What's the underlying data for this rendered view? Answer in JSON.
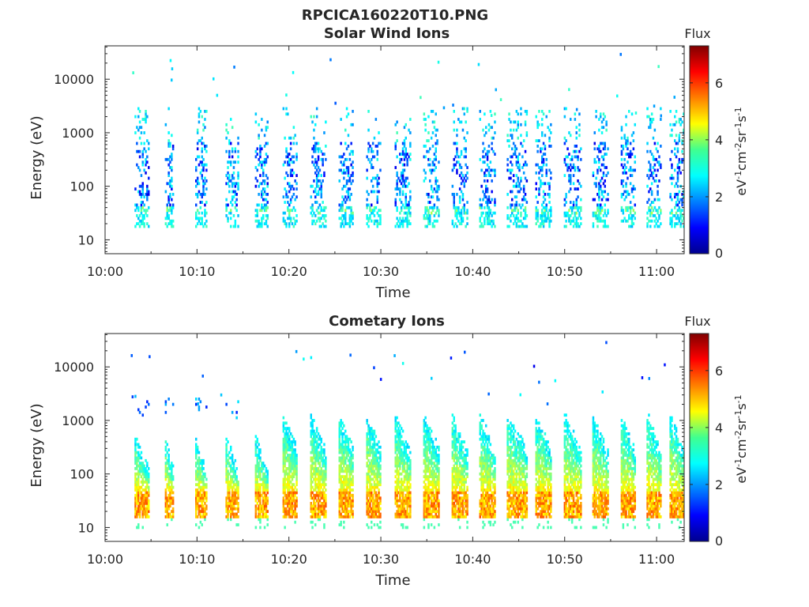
{
  "figure_title": "RPCICA160220T10.PNG",
  "chart_data": [
    {
      "type": "heatmap",
      "title": "Solar Wind Ions",
      "xlabel": "Time",
      "ylabel": "Energy (eV)",
      "x_ticks": [
        "10:00",
        "10:10",
        "10:20",
        "10:30",
        "10:40",
        "10:50",
        "11:00"
      ],
      "x_range_minutes": [
        0,
        63
      ],
      "y_scale": "log",
      "y_ticks": [
        10,
        100,
        1000,
        10000
      ],
      "y_tick_labels": [
        "10",
        "100",
        "1000",
        "10000"
      ],
      "y_range": [
        5.5,
        42000
      ],
      "colorbar": {
        "title": "Flux",
        "label": "eV-1cm-2sr-1s-1",
        "ticks": [
          0,
          2,
          4,
          6
        ],
        "range": [
          0,
          7.3
        ],
        "colormap": "jet"
      },
      "bursts": {
        "start_minutes": [
          3.2,
          6.5,
          9.8,
          13.1,
          16.3,
          19.3,
          22.3,
          25.4,
          28.4,
          31.5,
          34.6,
          37.7,
          40.7,
          43.7,
          46.8,
          49.9,
          53.0,
          56.1,
          58.9,
          61.4
        ],
        "widths_minutes": [
          1.6,
          0.9,
          1.2,
          1.3,
          1.3,
          1.6,
          1.7,
          1.6,
          1.6,
          1.6,
          1.7,
          1.6,
          1.6,
          2.2,
          1.7,
          1.9,
          1.6,
          1.5,
          1.5,
          1.6
        ]
      }
    },
    {
      "type": "heatmap",
      "title": "Cometary Ions",
      "xlabel": "Time",
      "ylabel": "Energy (eV)",
      "x_ticks": [
        "10:00",
        "10:10",
        "10:20",
        "10:30",
        "10:40",
        "10:50",
        "11:00"
      ],
      "x_range_minutes": [
        0,
        63
      ],
      "y_scale": "log",
      "y_ticks": [
        10,
        100,
        1000,
        10000
      ],
      "y_tick_labels": [
        "10",
        "100",
        "1000",
        "10000"
      ],
      "y_range": [
        5.5,
        42000
      ],
      "colorbar": {
        "title": "Flux",
        "label": "eV-1cm-2sr-1s-1",
        "ticks": [
          0,
          2,
          4,
          6
        ],
        "range": [
          0,
          7.3
        ],
        "colormap": "jet"
      },
      "bursts": {
        "start_minutes": [
          3.2,
          6.5,
          9.8,
          13.1,
          16.3,
          19.3,
          22.3,
          25.4,
          28.4,
          31.5,
          34.6,
          37.7,
          40.7,
          43.7,
          46.8,
          49.9,
          53.0,
          56.1,
          58.9,
          61.4
        ],
        "widths_minutes": [
          1.6,
          0.9,
          1.2,
          1.3,
          1.3,
          1.6,
          1.7,
          1.6,
          1.6,
          1.6,
          1.7,
          1.6,
          1.6,
          2.2,
          1.7,
          1.9,
          1.6,
          1.5,
          1.5,
          1.6
        ]
      }
    }
  ]
}
